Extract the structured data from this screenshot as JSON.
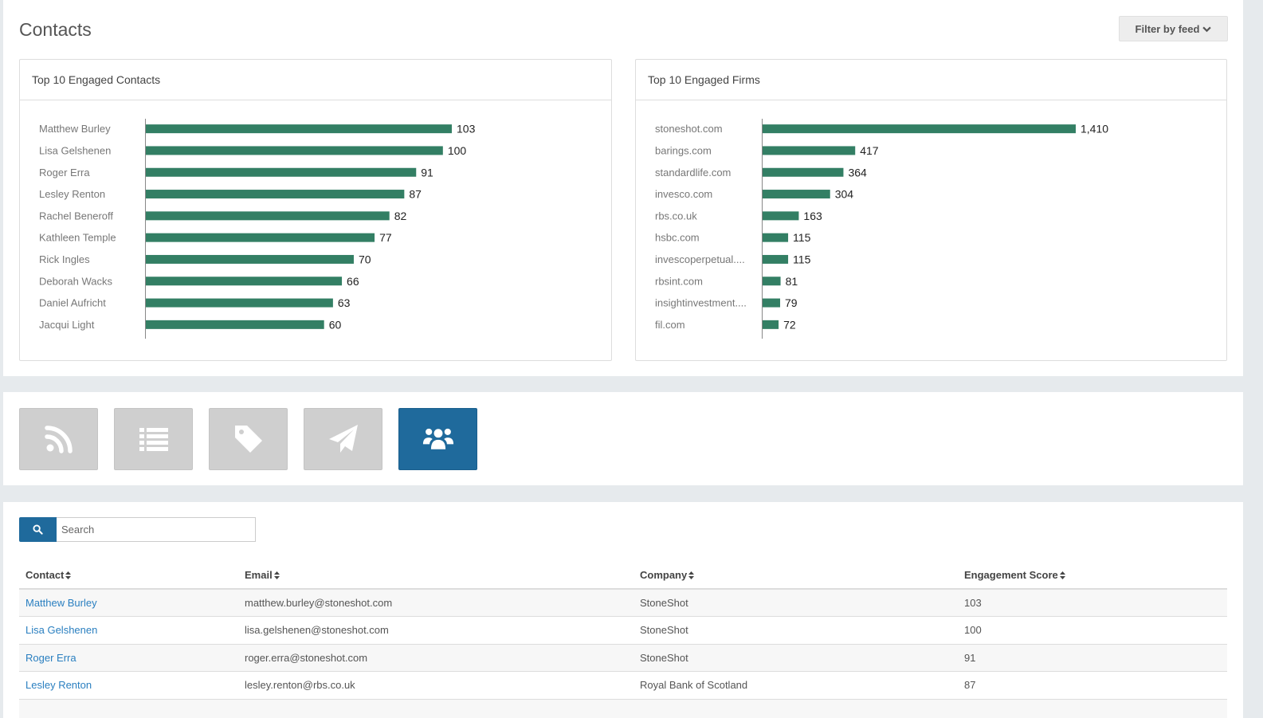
{
  "header": {
    "title": "Contacts",
    "filter_label": "Filter by feed"
  },
  "colors": {
    "bar": "#337f64",
    "accent": "#1f6a9c",
    "tile_inactive": "#cfcfcf",
    "link": "#2a7fc0"
  },
  "chart_data": [
    {
      "type": "bar",
      "orientation": "horizontal",
      "title": "Top 10 Engaged Contacts",
      "categories": [
        "Matthew Burley",
        "Lisa Gelshenen",
        "Roger Erra",
        "Lesley Renton",
        "Rachel Beneroff",
        "Kathleen Temple",
        "Rick Ingles",
        "Deborah Wacks",
        "Daniel Aufricht",
        "Jacqui Light"
      ],
      "values": [
        103,
        100,
        91,
        87,
        82,
        77,
        70,
        66,
        63,
        60
      ],
      "value_labels": [
        "103",
        "100",
        "91",
        "87",
        "82",
        "77",
        "70",
        "66",
        "63",
        "60"
      ],
      "xlim": [
        0,
        103
      ],
      "grid": false
    },
    {
      "type": "bar",
      "orientation": "horizontal",
      "title": "Top 10 Engaged Firms",
      "categories": [
        "stoneshot.com",
        "barings.com",
        "standardlife.com",
        "invesco.com",
        "rbs.co.uk",
        "hsbc.com",
        "invescoperpetual....",
        "rbsint.com",
        "insightinvestment....",
        "fil.com"
      ],
      "values": [
        1410,
        417,
        364,
        304,
        163,
        115,
        115,
        81,
        79,
        72
      ],
      "value_labels": [
        "1,410",
        "417",
        "364",
        "304",
        "163",
        "115",
        "115",
        "81",
        "79",
        "72"
      ],
      "xlim": [
        0,
        1410
      ],
      "grid": false
    }
  ],
  "tiles": [
    {
      "icon": "rss-icon",
      "active": false
    },
    {
      "icon": "list-icon",
      "active": false
    },
    {
      "icon": "tag-icon",
      "active": false
    },
    {
      "icon": "paper-plane-icon",
      "active": false
    },
    {
      "icon": "users-icon",
      "active": true
    }
  ],
  "search": {
    "placeholder": "Search",
    "value": ""
  },
  "table": {
    "headers": [
      "Contact",
      "Email",
      "Company",
      "Engagement Score"
    ],
    "rows": [
      {
        "contact": "Matthew Burley",
        "email": "matthew.burley@stoneshot.com",
        "company": "StoneShot",
        "score": "103"
      },
      {
        "contact": "Lisa Gelshenen",
        "email": "lisa.gelshenen@stoneshot.com",
        "company": "StoneShot",
        "score": "100"
      },
      {
        "contact": "Roger Erra",
        "email": "roger.erra@stoneshot.com",
        "company": "StoneShot",
        "score": "91"
      },
      {
        "contact": "Lesley Renton",
        "email": "lesley.renton@rbs.co.uk",
        "company": "Royal Bank of Scotland",
        "score": "87"
      }
    ]
  }
}
